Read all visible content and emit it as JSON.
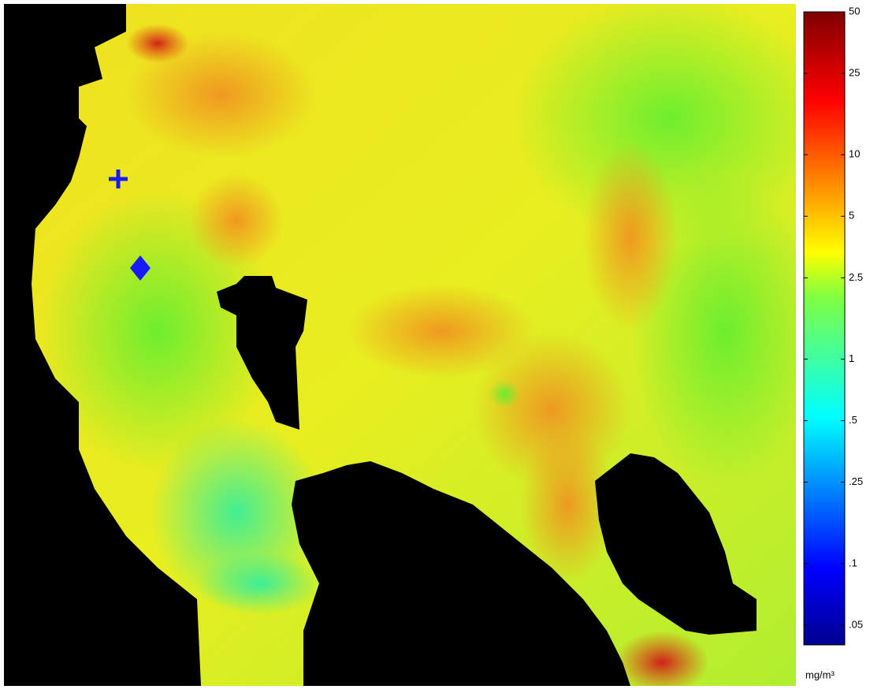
{
  "colorbar": {
    "scale": "log",
    "lim": [
      0.04,
      50
    ],
    "ticks": [
      50,
      25,
      10,
      5,
      {
        "value": 2.5,
        "label": "2.5"
      },
      1,
      {
        "value": 0.5,
        "label": ".5"
      },
      {
        "value": 0.25,
        "label": ".25"
      },
      {
        "value": 0.1,
        "label": ".1"
      },
      {
        "value": 0.05,
        "label": ".05"
      }
    ],
    "unit": "mg/m³"
  }
}
